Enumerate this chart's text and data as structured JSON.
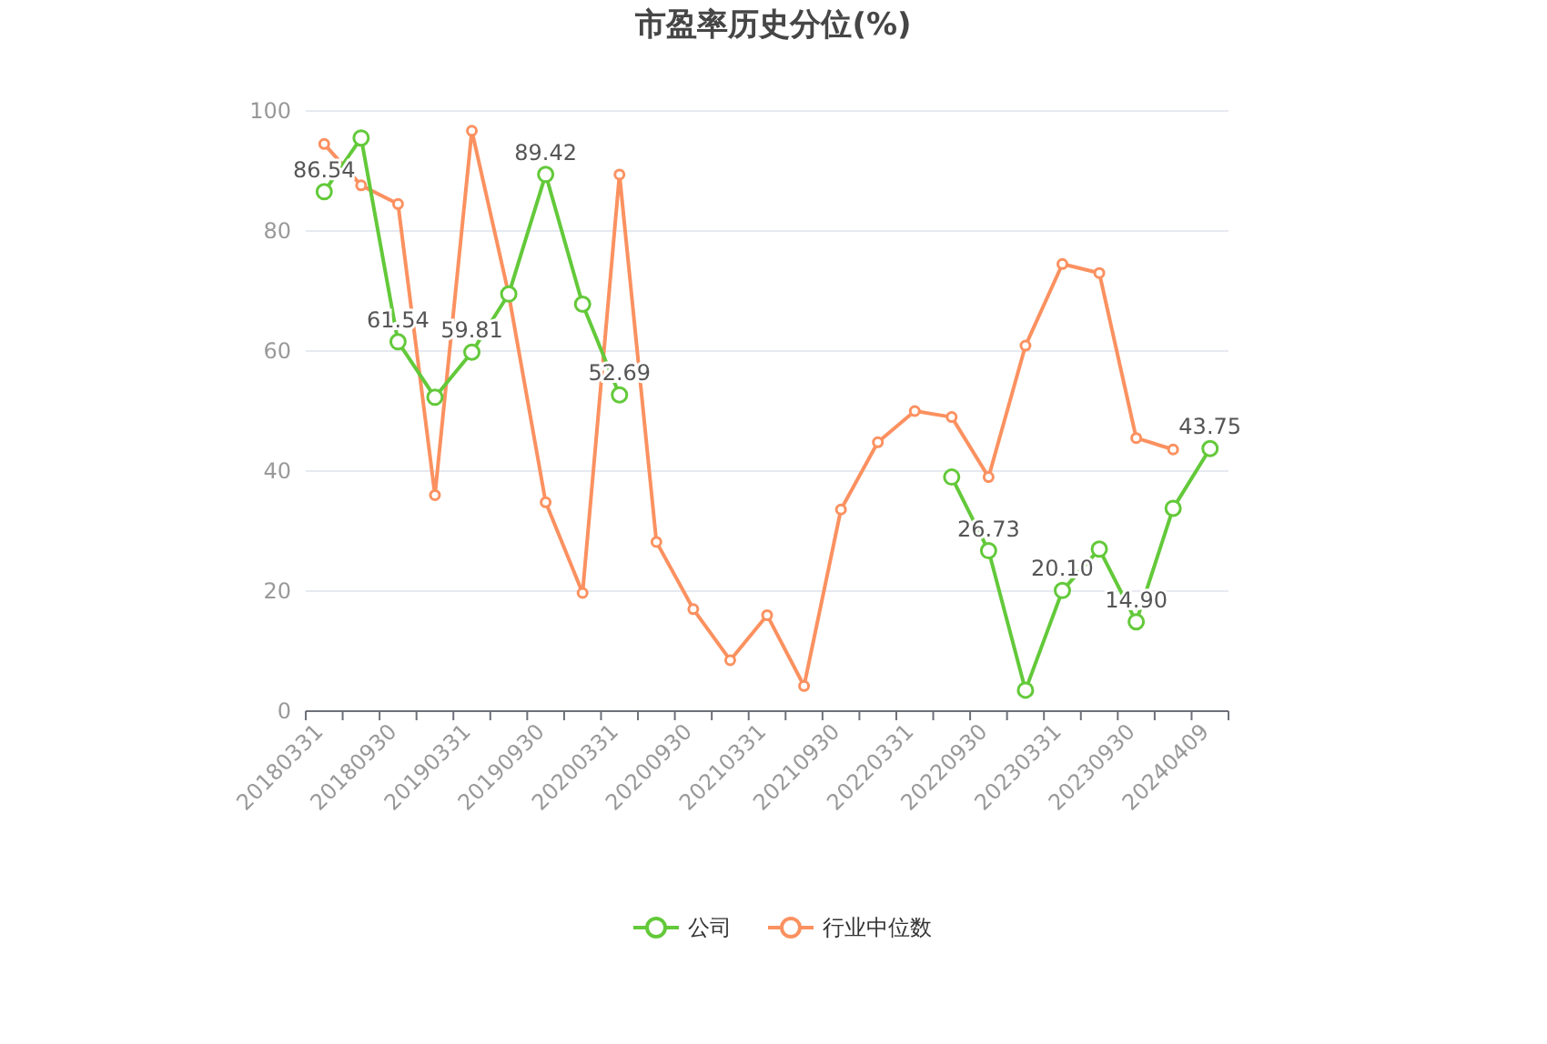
{
  "chart_data": {
    "type": "line",
    "title": "市盈率历史分位(%)",
    "categories": [
      "20180331",
      null,
      "20180930",
      null,
      "20190331",
      null,
      "20190930",
      null,
      "20200331",
      null,
      "20200930",
      null,
      "20210331",
      null,
      "20210930",
      null,
      "20220331",
      null,
      "20220930",
      null,
      "20230331",
      null,
      "20230930",
      null,
      "20240409"
    ],
    "series": [
      {
        "name": "公司",
        "color": "#63c93a",
        "values": [
          86.54,
          95.5,
          61.54,
          52.3,
          59.81,
          69.5,
          89.42,
          67.8,
          52.69,
          null,
          null,
          null,
          null,
          null,
          null,
          null,
          null,
          39,
          26.73,
          3.5,
          20.1,
          27,
          14.9,
          33.8,
          43.75
        ],
        "value_labels": [
          "86.54",
          null,
          "61.54",
          null,
          "59.81",
          null,
          "89.42",
          null,
          "52.69",
          null,
          null,
          null,
          null,
          null,
          null,
          null,
          null,
          null,
          "26.73",
          null,
          "20.10",
          null,
          "14.90",
          null,
          "43.75"
        ]
      },
      {
        "name": "行业中位数",
        "color": "#fb9160",
        "values": [
          94.5,
          87.6,
          84.5,
          36,
          96.7,
          69.4,
          34.8,
          19.7,
          89.4,
          28.2,
          17,
          8.5,
          16,
          4.2,
          33.6,
          44.8,
          50,
          49,
          39,
          60.9,
          74.5,
          73,
          45.5,
          43.6,
          null
        ]
      }
    ],
    "ylim": [
      0,
      100
    ],
    "yticks": [
      0,
      20,
      40,
      60,
      80,
      100
    ],
    "grid": "y",
    "legend": "bottom",
    "marker": "circle",
    "line_style": "solid"
  }
}
